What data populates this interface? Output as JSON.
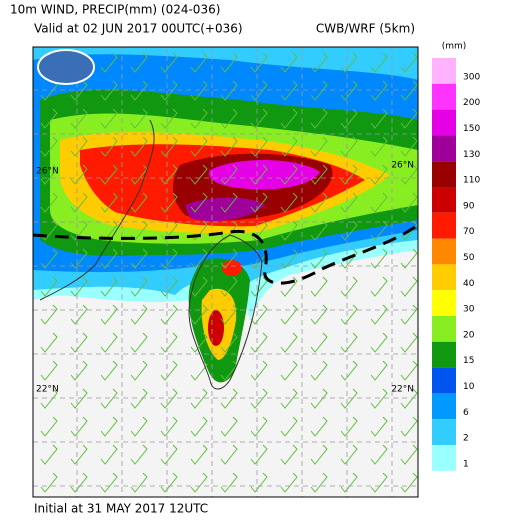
{
  "header": {
    "title": "10m WIND, PRECIP(mm) (024-036)",
    "valid": "Valid at 02 JUN 2017 00UTC(+036)",
    "source": "CWB/WRF (5km)"
  },
  "map": {
    "lat_labels": [
      "26°N",
      "26°N",
      "22°N",
      "22°N"
    ]
  },
  "legend": {
    "unit": "(mm)",
    "levels": [
      {
        "label": 300,
        "color": "#ffb3ff"
      },
      {
        "label": 200,
        "color": "#ff33ff"
      },
      {
        "label": 150,
        "color": "#e600e6"
      },
      {
        "label": 130,
        "color": "#a0009a"
      },
      {
        "label": 110,
        "color": "#990000"
      },
      {
        "label": 90,
        "color": "#cc0000"
      },
      {
        "label": 70,
        "color": "#ff1a00"
      },
      {
        "label": 50,
        "color": "#ff8800"
      },
      {
        "label": 40,
        "color": "#ffcc00"
      },
      {
        "label": 30,
        "color": "#ffff00"
      },
      {
        "label": 20,
        "color": "#88ee22"
      },
      {
        "label": 15,
        "color": "#109910"
      },
      {
        "label": 10,
        "color": "#0055ee"
      },
      {
        "label": 6,
        "color": "#0099ff"
      },
      {
        "label": 2,
        "color": "#33ccff"
      },
      {
        "label": 1,
        "color": "#99ffff"
      }
    ]
  },
  "footer": {
    "initial": "Initial at 31 MAY 2017 12UTC"
  }
}
